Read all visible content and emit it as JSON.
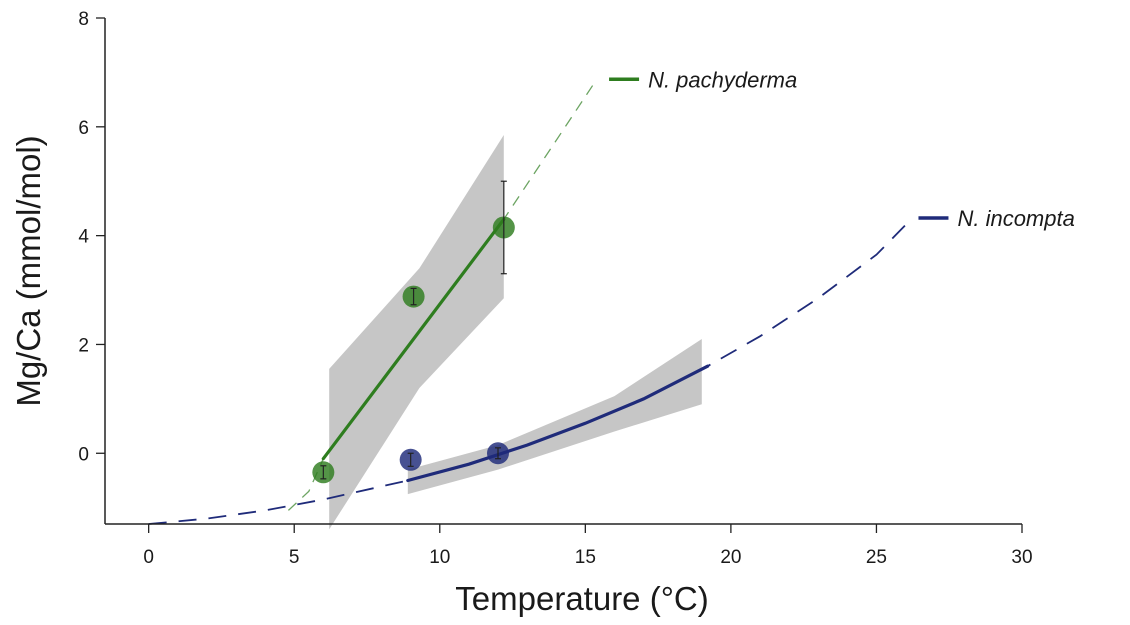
{
  "chart_data": {
    "type": "line",
    "title": "",
    "xlabel": "Temperature (°C)",
    "ylabel": "Mg/Ca (mmol/mol)",
    "xlim": [
      -1.5,
      30
    ],
    "ylim": [
      -1.3,
      8
    ],
    "xticks": [
      0,
      5,
      10,
      15,
      20,
      25,
      30
    ],
    "yticks": [
      0,
      2,
      4,
      6,
      8
    ],
    "grid": false,
    "legend": "inline-right",
    "series": [
      {
        "name": "N. pachyderma",
        "color": "#2e7d1f",
        "fit_line": [
          [
            6,
            -0.1
          ],
          [
            12.2,
            4.3
          ]
        ],
        "dashed_extension": [
          [
            4.8,
            -1.05
          ],
          [
            5.5,
            -0.7
          ],
          [
            6,
            -0.1
          ],
          [
            12.2,
            4.3
          ],
          [
            15.3,
            6.8
          ]
        ],
        "confidence_band": [
          [
            6.2,
            1.55
          ],
          [
            9.3,
            3.4
          ],
          [
            12.2,
            5.85
          ],
          [
            12.2,
            2.85
          ],
          [
            9.3,
            1.2
          ],
          [
            6.2,
            -1.4
          ]
        ],
        "points": [
          {
            "x": 6.0,
            "y": -0.35,
            "err": 0.12
          },
          {
            "x": 9.1,
            "y": 2.88,
            "err": 0.15
          },
          {
            "x": 12.2,
            "y": 4.15,
            "err": 0.85
          }
        ]
      },
      {
        "name": "N. incompta",
        "color": "#1f2b7a",
        "fit_line": [
          [
            8.9,
            -0.5
          ],
          [
            11,
            -0.2
          ],
          [
            13,
            0.15
          ],
          [
            15,
            0.55
          ],
          [
            17,
            1.0
          ],
          [
            19.2,
            1.6
          ]
        ],
        "dashed_extension": [
          [
            0,
            -1.3
          ],
          [
            2,
            -1.2
          ],
          [
            4,
            -1.05
          ],
          [
            6,
            -0.85
          ],
          [
            8.9,
            -0.5
          ],
          [
            11,
            -0.2
          ],
          [
            13,
            0.15
          ],
          [
            15,
            0.55
          ],
          [
            17,
            1.0
          ],
          [
            19.2,
            1.6
          ],
          [
            21,
            2.15
          ],
          [
            23,
            2.85
          ],
          [
            25,
            3.65
          ],
          [
            26.1,
            4.25
          ]
        ],
        "confidence_band": [
          [
            8.9,
            -0.3
          ],
          [
            12,
            0.15
          ],
          [
            16,
            1.05
          ],
          [
            19,
            2.1
          ],
          [
            19,
            0.9
          ],
          [
            16,
            0.4
          ],
          [
            12,
            -0.3
          ],
          [
            8.9,
            -0.75
          ]
        ],
        "points": [
          {
            "x": 9.0,
            "y": -0.12,
            "err": 0.12
          },
          {
            "x": 12.0,
            "y": 0.0,
            "err": 0.1
          }
        ]
      }
    ]
  }
}
